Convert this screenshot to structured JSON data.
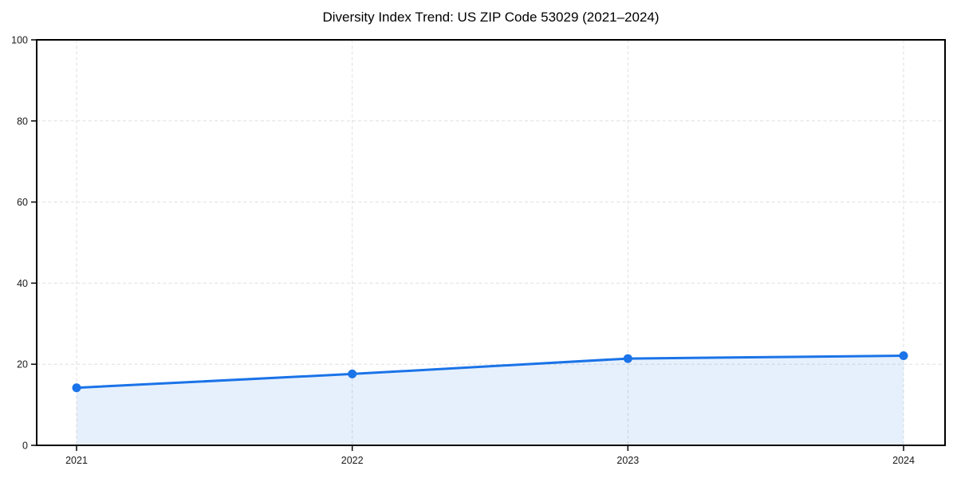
{
  "chart_data": {
    "type": "line",
    "title": "Diversity Index Trend: US ZIP Code 53029 (2021–2024)",
    "categories": [
      "2021",
      "2022",
      "2023",
      "2024"
    ],
    "series": [
      {
        "name": "Diversity Index",
        "values": [
          14.2,
          17.6,
          21.4,
          22.1
        ]
      }
    ],
    "xlabel": "",
    "ylabel": "",
    "ylim": [
      0,
      100
    ],
    "yticks": [
      0,
      20,
      40,
      60,
      80,
      100
    ],
    "ytick_labels": [
      "0",
      "20",
      "40",
      "60",
      "80",
      "100"
    ],
    "grid": true,
    "grid_style": "dashed",
    "legend": "none",
    "area_fill": true,
    "colors": {
      "line": "#1a73e8",
      "marker": "#1a73e8",
      "area_fill": "#1a73e8",
      "area_fill_opacity": 0.11,
      "grid": "#dedede",
      "spine": "#000000",
      "tick_text": "#1a1a1a",
      "title_text": "#000000",
      "background": "#ffffff"
    }
  }
}
